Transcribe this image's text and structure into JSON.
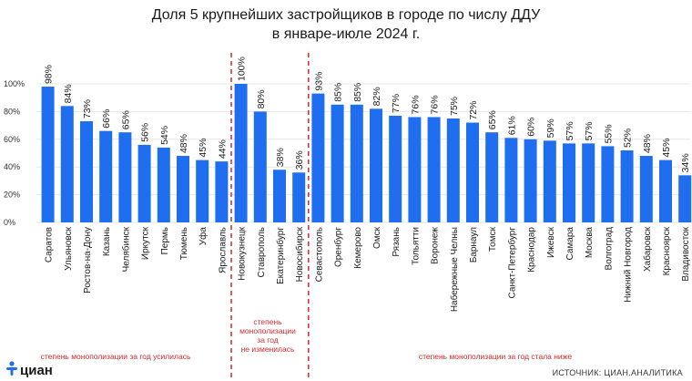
{
  "chart_data": {
    "type": "bar",
    "title": "Доля 5 крупнейших застройщиков в городе по числу ДДУ",
    "subtitle": "в январе-июле 2024 г.",
    "ylim": [
      0,
      100
    ],
    "yticks": [
      "0%",
      "20%",
      "40%",
      "60%",
      "80%",
      "100%"
    ],
    "bar_color": "#1f6ef0",
    "groups": [
      {
        "label": "степень монополизации за год усилилась",
        "categories": [
          "Саратов",
          "Ульяновск",
          "Ростов-на-Дону",
          "Казань",
          "Челябинск",
          "Иркутск",
          "Пермь",
          "Тюмень",
          "Уфа",
          "Ярославль"
        ],
        "values": [
          98,
          84,
          73,
          66,
          65,
          56,
          54,
          48,
          45,
          44
        ]
      },
      {
        "label": "степень монополизации за год не изменилась",
        "categories": [
          "Новокузнецк",
          "Ставрополь",
          "Екатеринбург",
          "Новосибирск"
        ],
        "values": [
          100,
          80,
          38,
          36
        ]
      },
      {
        "label": "степень монополизации за год стала ниже",
        "categories": [
          "Севастополь",
          "Оренбург",
          "Кемерово",
          "Омск",
          "Рязань",
          "Тольятти",
          "Воронеж",
          "Набережные Челны",
          "Барнаул",
          "Томск",
          "Санкт-Петербург",
          "Краснодар",
          "Ижевск",
          "Самара",
          "Москва",
          "Волгоград",
          "Нижний Новгород",
          "Хабаровск",
          "Красноярск",
          "Владивосток"
        ],
        "values": [
          93,
          85,
          85,
          82,
          77,
          76,
          76,
          75,
          72,
          65,
          61,
          60,
          59,
          57,
          57,
          55,
          52,
          48,
          45,
          34
        ]
      }
    ],
    "separator_color": "#d22b2b"
  },
  "notes": {
    "group1": "степень монополизации за год усилилась",
    "group2": [
      "степень",
      "монополизации",
      "за год",
      "не изменилась"
    ],
    "group3": "степень монополизации за год стала ниже"
  },
  "logo": {
    "text": "циан",
    "icon": "cian-logo-icon"
  },
  "source": "ИСТОЧНИК: ЦИАН.АНАЛИТИКА"
}
